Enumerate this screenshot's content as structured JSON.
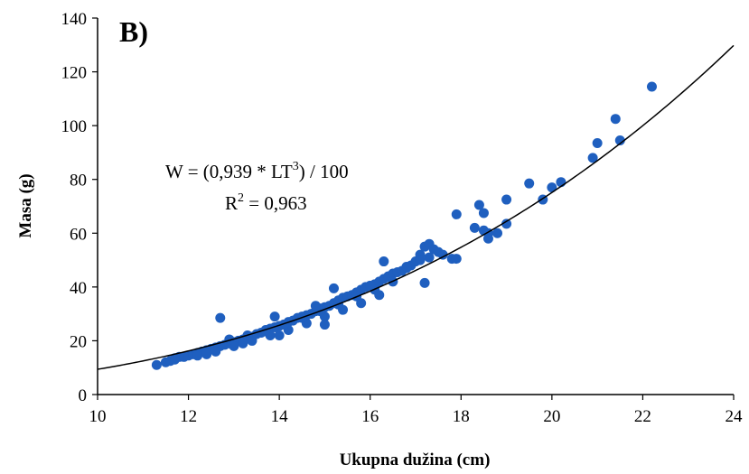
{
  "chart_data": {
    "type": "scatter",
    "panel_label": "B)",
    "xlabel": "Ukupna dužina (cm)",
    "ylabel": "Masa (g)",
    "xlim": [
      10,
      24
    ],
    "ylim": [
      0,
      140
    ],
    "x_ticks": [
      10,
      12,
      14,
      16,
      18,
      20,
      22,
      24
    ],
    "y_ticks": [
      0,
      20,
      40,
      60,
      80,
      100,
      120,
      140
    ],
    "grid": false,
    "point_color": "#1f5fbf",
    "curve_color": "#000000",
    "equation": {
      "prefix": "W = (0,939 * LT",
      "sup": "3",
      "suffix": ") / 100"
    },
    "r_squared": {
      "prefix": "R",
      "sup": "2",
      "suffix": " = 0,963"
    },
    "fit": {
      "a": 0.939,
      "b": 3,
      "divisor": 100
    },
    "series": [
      {
        "x": [
          11.3,
          11.5,
          11.6,
          11.7,
          11.8,
          11.9,
          12.0,
          12.1,
          12.2,
          12.3,
          12.4,
          12.5,
          12.6,
          12.7,
          12.7,
          12.8,
          12.9,
          13.0,
          13.1,
          13.2,
          13.3,
          13.4,
          13.5,
          13.6,
          13.7,
          13.8,
          13.9,
          14.0,
          14.1,
          14.2,
          14.3,
          14.4,
          14.5,
          14.6,
          14.7,
          14.8,
          14.9,
          15.0,
          15.1,
          15.2,
          15.3,
          15.4,
          15.5,
          15.6,
          15.7,
          15.8,
          15.9,
          16.0,
          16.1,
          16.2,
          16.3,
          16.4,
          16.5,
          16.6,
          16.7,
          16.8,
          16.9,
          17.0,
          17.1,
          17.2,
          17.3,
          17.4,
          17.5,
          17.6,
          17.8,
          17.9,
          18.3,
          18.4,
          18.5,
          18.6,
          18.8,
          19.0,
          19.5,
          19.8,
          20.0,
          20.2,
          20.9,
          21.0,
          21.4,
          21.5,
          22.2,
          11.7,
          12.2,
          12.6,
          13.0,
          13.4,
          13.8,
          14.2,
          14.6,
          15.0,
          15.4,
          15.8,
          16.2,
          12.9,
          13.3,
          13.7,
          14.1,
          14.5,
          14.9,
          15.3,
          15.7,
          16.1,
          16.5,
          17.2,
          16.3,
          14.8,
          15.2,
          13.9,
          18.5,
          17.9,
          18.6,
          19.0,
          15.0,
          14.0,
          13.2,
          12.4,
          16.8,
          17.1,
          17.3
        ],
        "y": [
          11.0,
          12.0,
          12.5,
          13.5,
          14.0,
          14.0,
          14.5,
          15.0,
          15.5,
          16.0,
          16.5,
          17.0,
          17.5,
          18.0,
          28.5,
          18.5,
          19.0,
          19.5,
          20.0,
          20.5,
          21.0,
          21.5,
          22.5,
          23.0,
          23.5,
          24.5,
          25.0,
          25.5,
          26.0,
          27.0,
          27.5,
          28.5,
          29.0,
          29.5,
          30.0,
          31.0,
          32.0,
          32.5,
          33.0,
          34.0,
          35.0,
          36.0,
          36.5,
          37.0,
          38.0,
          39.0,
          40.0,
          40.5,
          41.0,
          42.0,
          43.0,
          44.0,
          45.0,
          45.5,
          46.0,
          47.0,
          48.0,
          49.5,
          52.0,
          55.0,
          56.0,
          54.0,
          53.0,
          52.0,
          50.5,
          67.0,
          62.0,
          70.5,
          67.5,
          58.0,
          60.0,
          72.5,
          78.5,
          72.5,
          77.0,
          79.0,
          88.0,
          93.5,
          102.5,
          94.5,
          114.5,
          13.0,
          14.5,
          16.0,
          18.0,
          20.0,
          22.0,
          24.0,
          26.5,
          29.0,
          31.5,
          34.0,
          37.0,
          20.5,
          22.0,
          24.0,
          26.0,
          28.5,
          31.0,
          33.5,
          36.5,
          39.0,
          42.0,
          41.5,
          49.5,
          33.0,
          39.5,
          29.0,
          61.0,
          50.5,
          60.0,
          63.5,
          26.0,
          22.0,
          19.0,
          15.0,
          47.5,
          50.0,
          51.0
        ]
      }
    ]
  }
}
